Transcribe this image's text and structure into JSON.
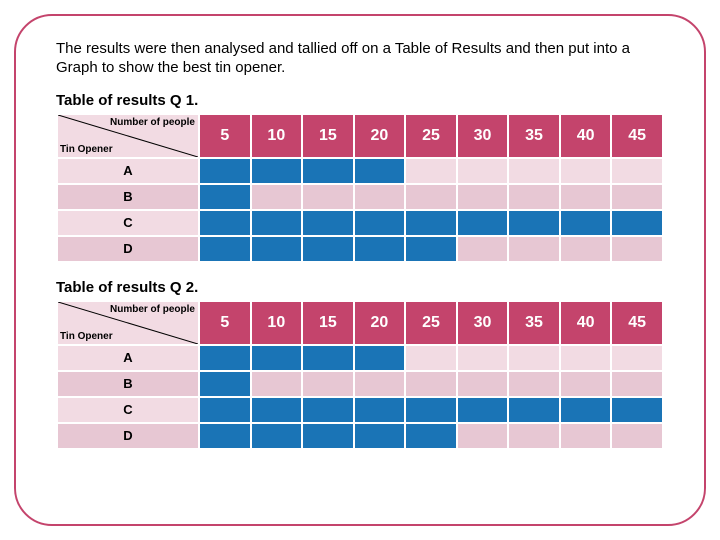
{
  "colors": {
    "frame_border": "#c4446c",
    "text": "#000000",
    "header_bg": "#c4446c",
    "header_text": "#ffffff",
    "filled": "#1a74b6",
    "unfilled_light": "#f2dbe3",
    "unfilled_dark": "#e7c7d3",
    "row_label_bg_light": "#f2dbe3",
    "row_label_bg_dark": "#e7c7d3",
    "diag_line": "#000000"
  },
  "intro_text": "The results were then analysed and tallied off on a Table of Results and then put into a Graph to show the best tin opener.",
  "columns": [
    "5",
    "10",
    "15",
    "20",
    "25",
    "30",
    "35",
    "40",
    "45"
  ],
  "diagonal_top_label": "Number of people",
  "diagonal_bottom_label": "Tin Opener",
  "tables": [
    {
      "caption": "Table of results Q 1.",
      "rows": [
        {
          "label": "A",
          "fill": [
            true,
            true,
            true,
            true,
            false,
            false,
            false,
            false,
            false
          ]
        },
        {
          "label": "B",
          "fill": [
            true,
            false,
            false,
            false,
            false,
            false,
            false,
            false,
            false
          ]
        },
        {
          "label": "C",
          "fill": [
            true,
            true,
            true,
            true,
            true,
            true,
            true,
            true,
            true
          ]
        },
        {
          "label": "D",
          "fill": [
            true,
            true,
            true,
            true,
            true,
            false,
            false,
            false,
            false
          ]
        }
      ]
    },
    {
      "caption": "Table of results Q 2.",
      "rows": [
        {
          "label": "A",
          "fill": [
            true,
            true,
            true,
            true,
            false,
            false,
            false,
            false,
            false
          ]
        },
        {
          "label": "B",
          "fill": [
            true,
            false,
            false,
            false,
            false,
            false,
            false,
            false,
            false
          ]
        },
        {
          "label": "C",
          "fill": [
            true,
            true,
            true,
            true,
            true,
            true,
            true,
            true,
            true
          ]
        },
        {
          "label": "D",
          "fill": [
            true,
            true,
            true,
            true,
            true,
            false,
            false,
            false,
            false
          ]
        }
      ]
    }
  ]
}
